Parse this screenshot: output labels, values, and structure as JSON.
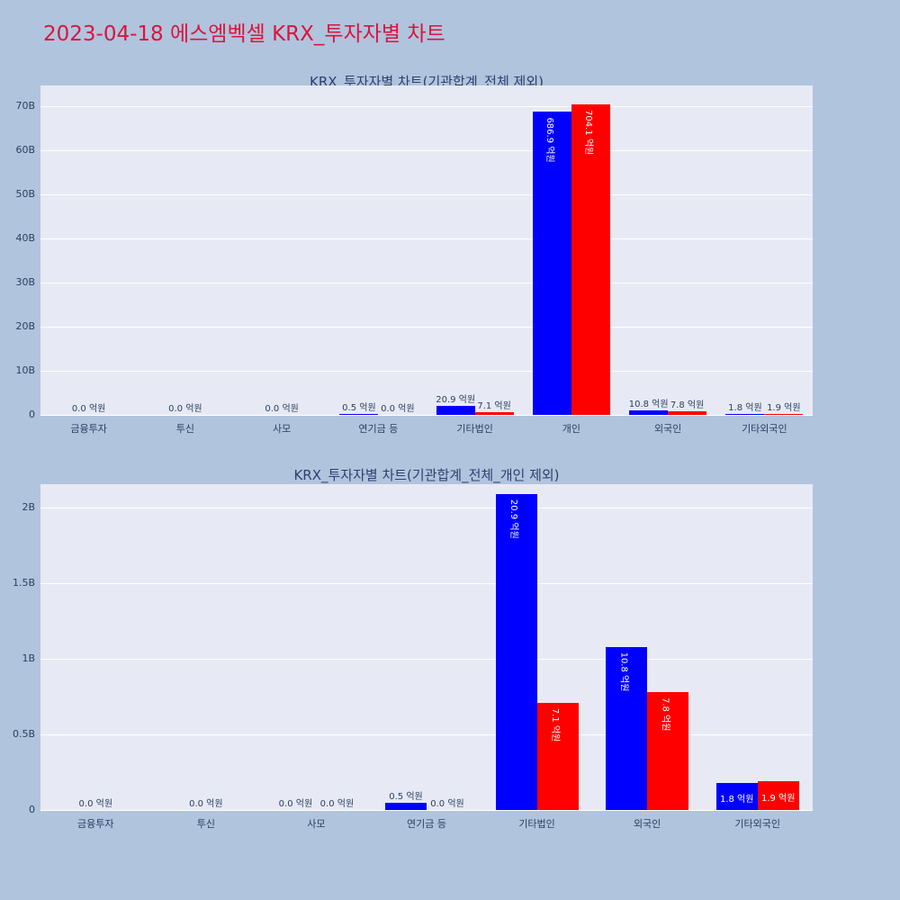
{
  "page": {
    "title": "2023-04-18 에스엠벡셀 KRX_투자자별 차트",
    "title_color": "#dc143c",
    "background": "#b0c4de"
  },
  "colors": {
    "plot_bg": "#e7eaf5",
    "grid": "#ffffff",
    "chart_title": "#2e3f6e",
    "tick": "#2a3f5f",
    "label_outside": "#2a3f5f",
    "label_inside": "#ffffff",
    "bar_blue": "#0000ff",
    "bar_red": "#ff0000"
  },
  "chart_data": [
    {
      "type": "bar",
      "title": "KRX_투자자별 차트(기관합계_전체 제외)",
      "unit": "억원",
      "grid": true,
      "legend": "none",
      "categories": [
        "금융투자",
        "투신",
        "사모",
        "연기금 등",
        "기타법인",
        "개인",
        "외국인",
        "기타외국인"
      ],
      "series": [
        {
          "name": "series-blue",
          "color": "#0000ff",
          "values_eokwon": [
            0.0,
            0.0,
            0.0,
            0.5,
            20.9,
            686.9,
            10.8,
            1.8
          ],
          "labels": [
            "0.0 억원",
            "0.0 억원",
            "0.0 억원",
            "0.5 억원",
            "20.9 억원",
            "686.9 억원",
            "10.8 억원",
            "1.8 억원"
          ]
        },
        {
          "name": "series-red",
          "color": "#ff0000",
          "values_eokwon": [
            0.0,
            0.0,
            0.0,
            0.0,
            7.1,
            704.1,
            7.8,
            1.9
          ],
          "labels": [
            null,
            null,
            null,
            "0.0 억원",
            "7.1 억원",
            "704.1 억원",
            "7.8 억원",
            "1.9 억원"
          ]
        }
      ],
      "yaxis": {
        "ticks_b": [
          0,
          10,
          20,
          30,
          40,
          50,
          60,
          70
        ],
        "tick_labels": [
          "0",
          "10B",
          "20B",
          "30B",
          "40B",
          "50B",
          "60B",
          "70B"
        ],
        "ymax_b": 74.7
      }
    },
    {
      "type": "bar",
      "title": "KRX_투자자별 차트(기관합계_전체_개인 제외)",
      "unit": "억원",
      "grid": true,
      "legend": "none",
      "categories": [
        "금융투자",
        "투신",
        "사모",
        "연기금 등",
        "기타법인",
        "외국인",
        "기타외국인"
      ],
      "series": [
        {
          "name": "series-blue",
          "color": "#0000ff",
          "values_eokwon": [
            0.0,
            0.0,
            0.0,
            0.5,
            20.9,
            10.8,
            1.8
          ],
          "labels": [
            "0.0 억원",
            "0.0 억원",
            "0.0 억원",
            "0.5 억원",
            "20.9 억원",
            "10.8 억원",
            "1.8 억원"
          ]
        },
        {
          "name": "series-red",
          "color": "#ff0000",
          "values_eokwon": [
            0.0,
            0.0,
            0.0,
            0.0,
            7.1,
            7.8,
            1.9
          ],
          "labels": [
            null,
            null,
            "0.0 억원",
            "0.0 억원",
            "7.1 억원",
            "7.8 억원",
            "1.9 억원"
          ]
        }
      ],
      "yaxis": {
        "ticks_b": [
          0,
          0.5,
          1,
          1.5,
          2
        ],
        "tick_labels": [
          "0",
          "0.5B",
          "1B",
          "1.5B",
          "2B"
        ],
        "ymax_b": 2.155
      }
    }
  ]
}
